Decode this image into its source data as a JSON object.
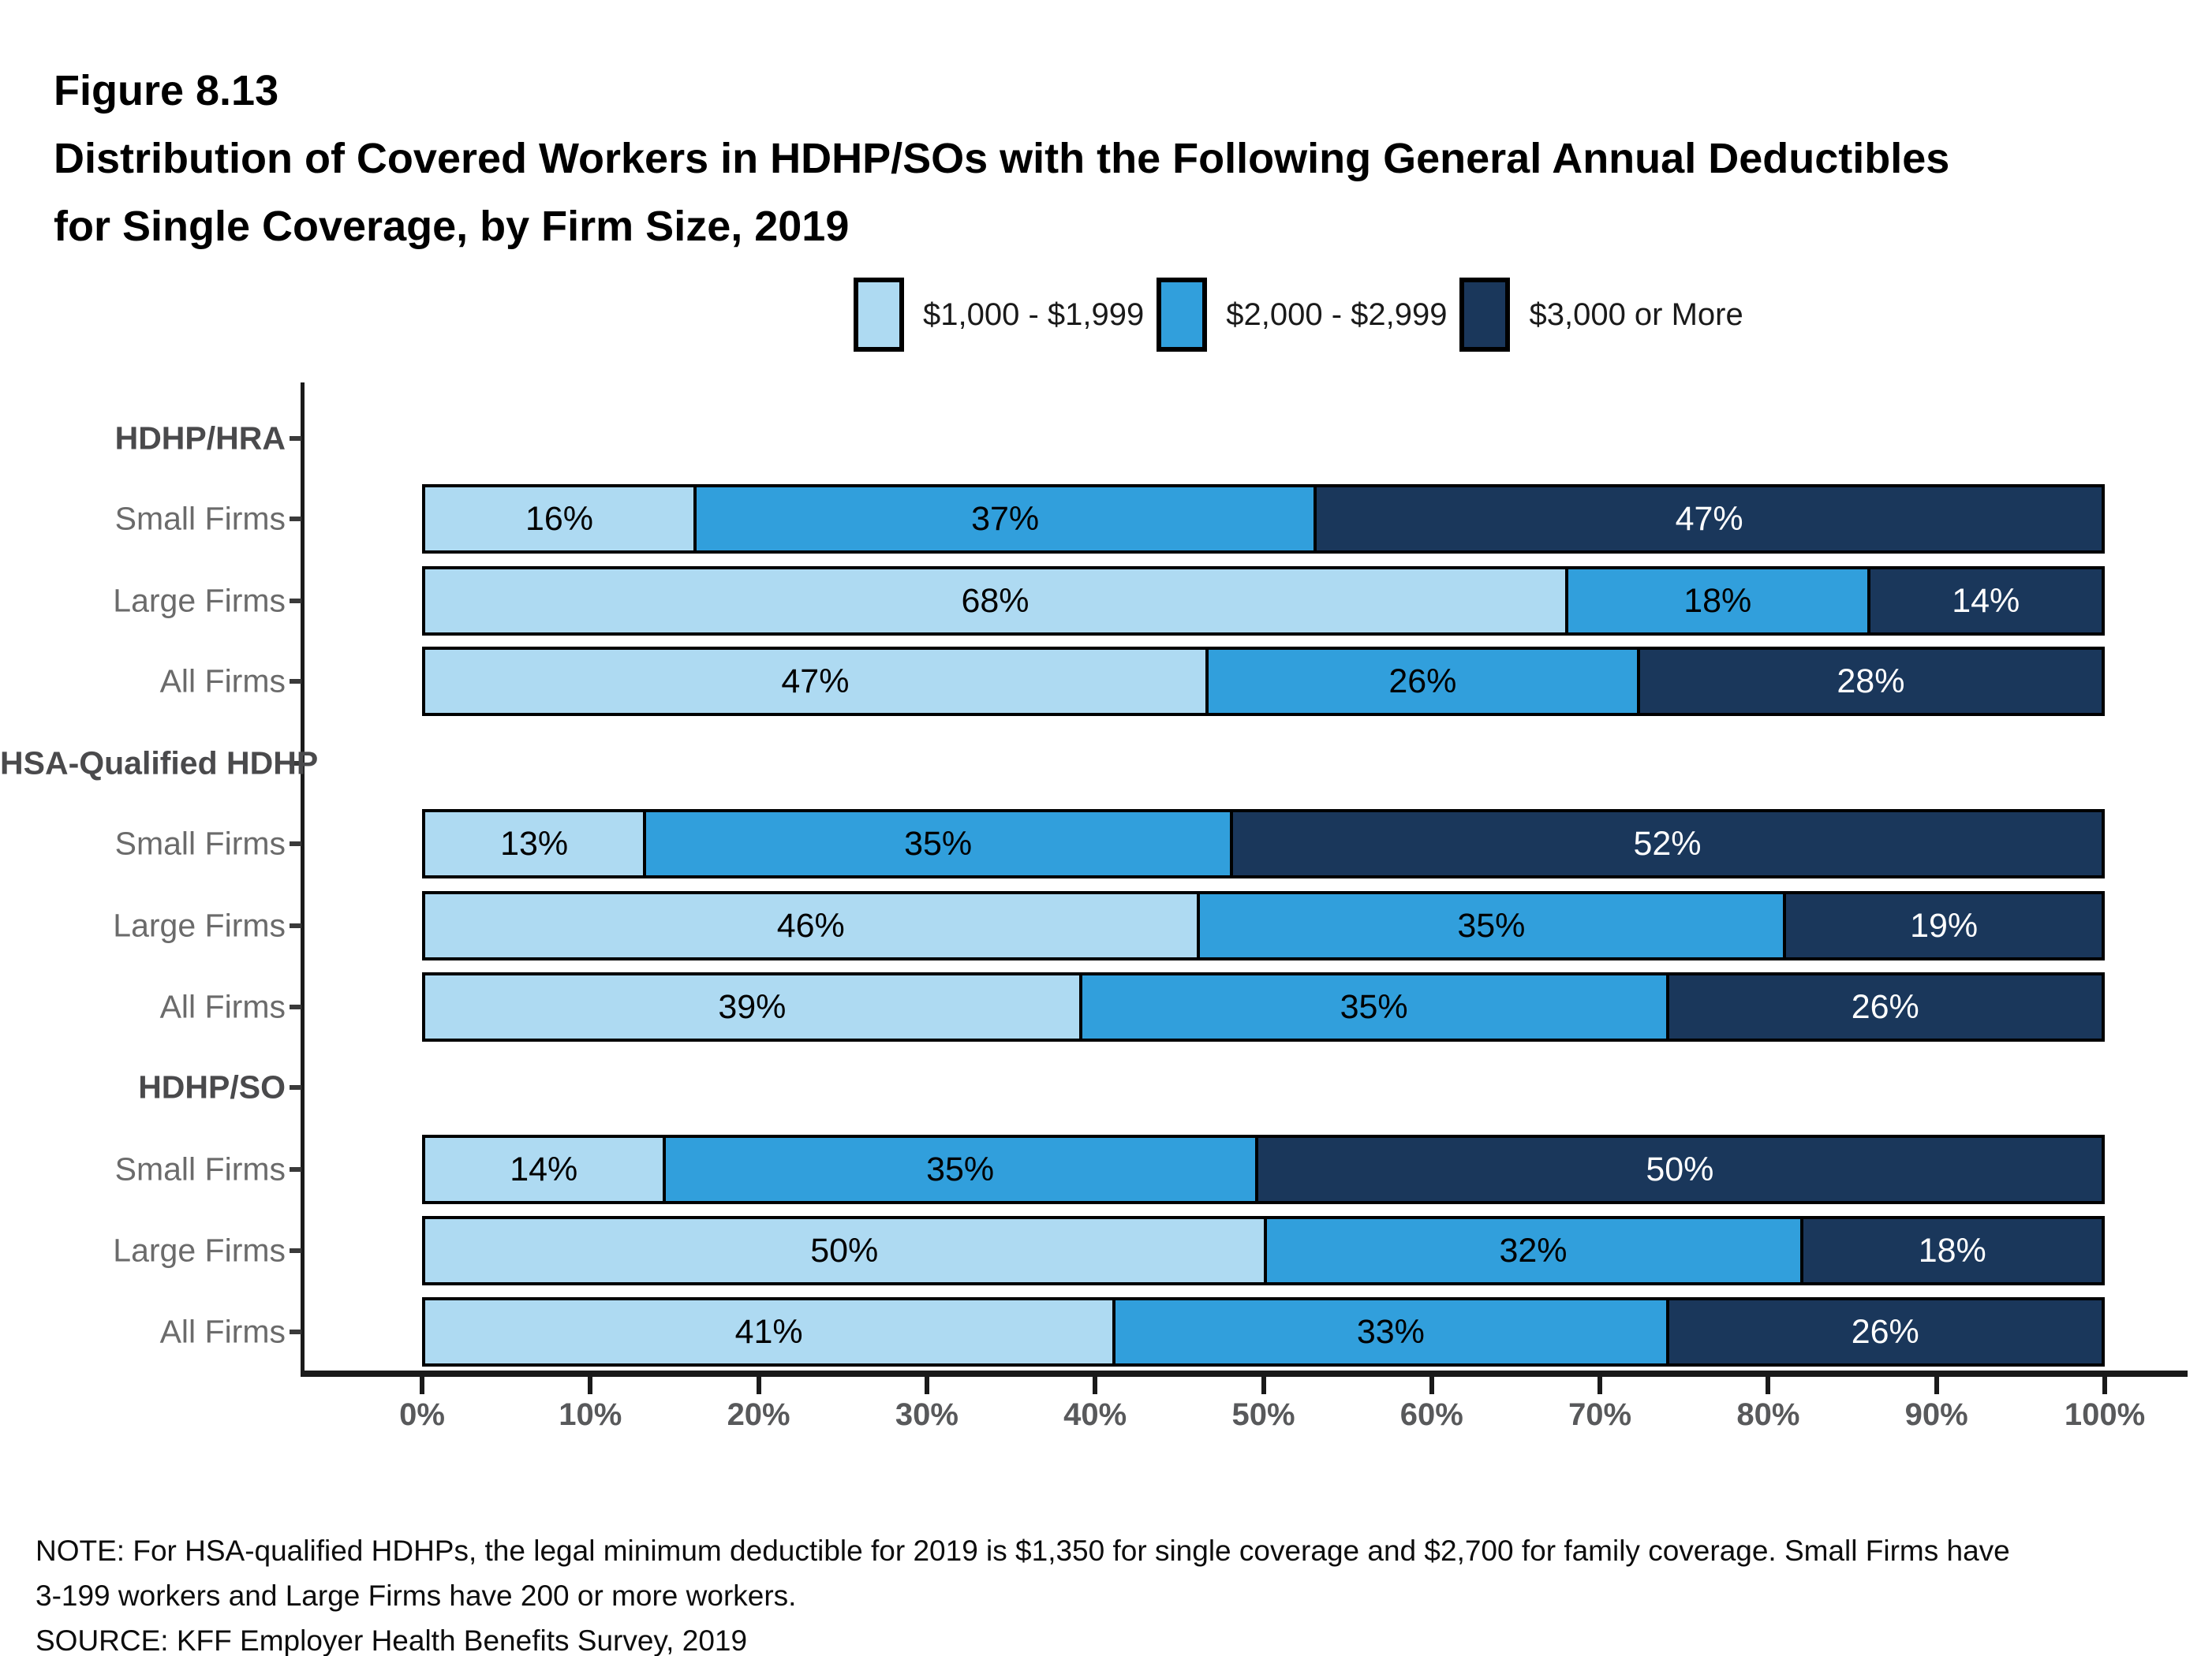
{
  "figure": {
    "label": "Figure 8.13",
    "title_line1": "Distribution of Covered Workers in HDHP/SOs with the Following General Annual Deductibles",
    "title_line2": "for Single Coverage, by Firm Size, 2019"
  },
  "chart_data": {
    "type": "bar",
    "orientation": "horizontal",
    "stacked": true,
    "grid": false,
    "legend_position": "top",
    "value_suffix": "%",
    "xlim": [
      0,
      100
    ],
    "x_ticks": [
      "0%",
      "10%",
      "20%",
      "30%",
      "40%",
      "50%",
      "60%",
      "70%",
      "80%",
      "90%",
      "100%"
    ],
    "legend": [
      {
        "label": "$1,000 - $1,999",
        "color": "#AEDAF2"
      },
      {
        "label": "$2,000 - $2,999",
        "color": "#319FDC"
      },
      {
        "label": "$3,000 or More",
        "color": "#1A375B"
      }
    ],
    "groups": [
      {
        "label": "HDHP/HRA",
        "rows": [
          {
            "label": "Small Firms",
            "values": [
              16,
              37,
              47
            ]
          },
          {
            "label": "Large Firms",
            "values": [
              68,
              18,
              14
            ]
          },
          {
            "label": "All Firms",
            "values": [
              47,
              26,
              28
            ]
          }
        ]
      },
      {
        "label": "HSA-Qualified HDHP",
        "rows": [
          {
            "label": "Small Firms",
            "values": [
              13,
              35,
              52
            ]
          },
          {
            "label": "Large Firms",
            "values": [
              46,
              35,
              19
            ]
          },
          {
            "label": "All Firms",
            "values": [
              39,
              35,
              26
            ]
          }
        ]
      },
      {
        "label": "HDHP/SO",
        "rows": [
          {
            "label": "Small Firms",
            "values": [
              14,
              35,
              50
            ]
          },
          {
            "label": "Large Firms",
            "values": [
              50,
              32,
              18
            ]
          },
          {
            "label": "All Firms",
            "values": [
              41,
              33,
              26
            ]
          }
        ]
      }
    ]
  },
  "notes": {
    "note_line1": "NOTE: For HSA-qualified HDHPs, the legal minimum deductible for 2019 is $1,350 for single coverage and $2,700 for family coverage. Small Firms have",
    "note_line2": "3-199 workers and Large Firms have 200 or more workers.",
    "source": "SOURCE: KFF Employer Health Benefits Survey, 2019"
  },
  "colors": {
    "axis": "#1a1a1a",
    "tick_label": "#58595b",
    "group_label": "#4a4a4c",
    "row_label": "#6b6b6b",
    "label_on_dark": "#ffffff",
    "label_on_light": "#000000"
  }
}
